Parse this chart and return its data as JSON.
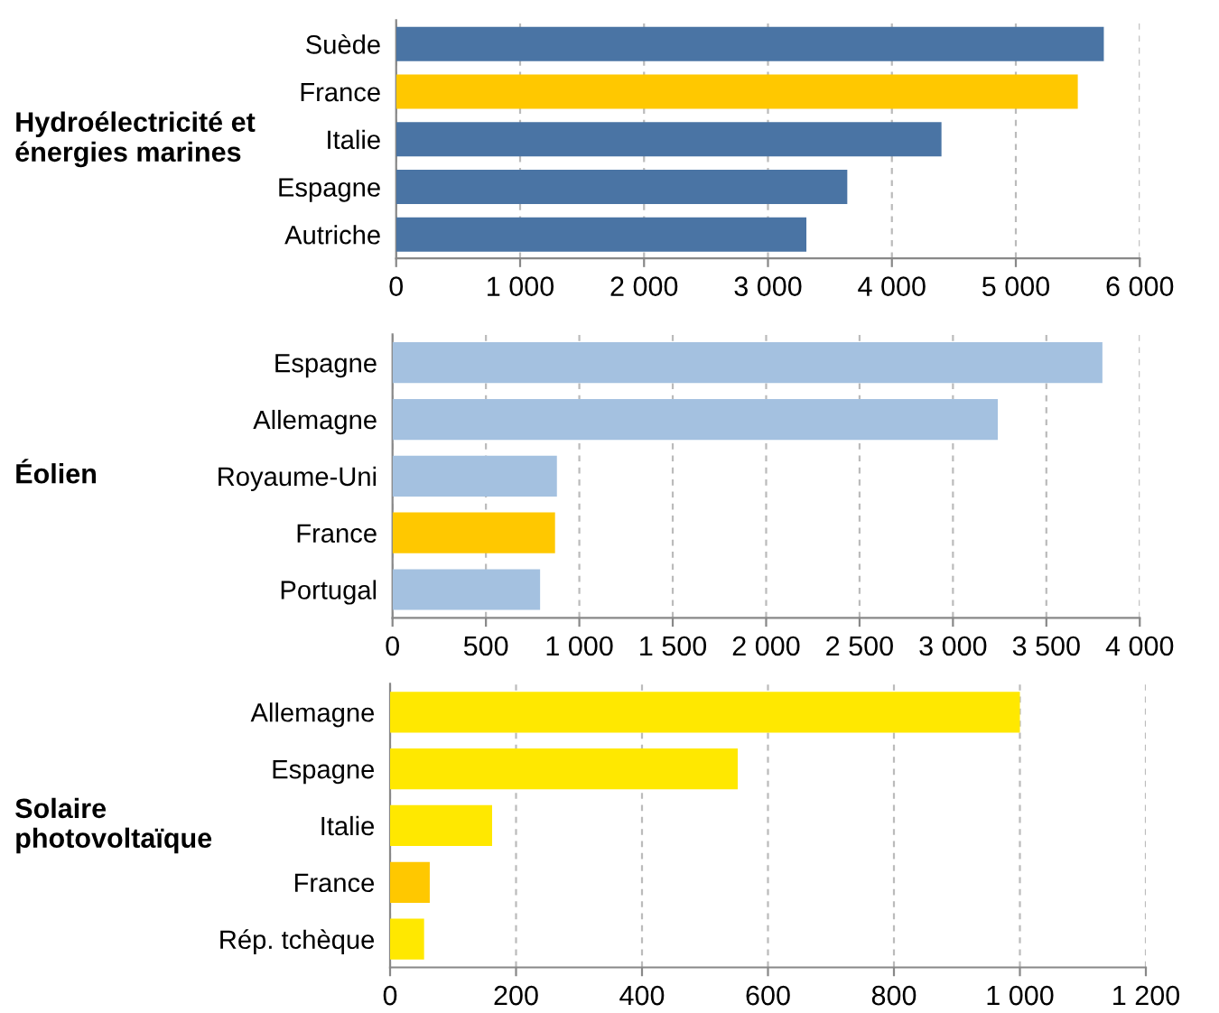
{
  "chart_data": [
    {
      "type": "bar",
      "orientation": "horizontal",
      "ylabel": "Hydroélectricité et\nénergies marines",
      "categories": [
        "Suède",
        "France",
        "Italie",
        "Espagne",
        "Autriche"
      ],
      "values": [
        5710,
        5500,
        4400,
        3640,
        3310
      ],
      "colors": [
        "#4a74a4",
        "#ffc800",
        "#4a74a4",
        "#4a74a4",
        "#4a74a4"
      ],
      "xlim": [
        0,
        6000
      ],
      "xticks": [
        0,
        {
          "value": 1000,
          "label": "1 000"
        },
        {
          "value": 2000,
          "label": "2 000"
        },
        {
          "value": 3000,
          "label": "3 000"
        },
        {
          "value": 4000,
          "label": "4 000"
        },
        {
          "value": 5000,
          "label": "5 000"
        },
        {
          "value": 6000,
          "label": "6 000"
        }
      ],
      "grid": "x"
    },
    {
      "type": "bar",
      "orientation": "horizontal",
      "ylabel": "Éolien",
      "categories": [
        "Espagne",
        "Allemagne",
        "Royaume-Uni",
        "France",
        "Portugal"
      ],
      "values": [
        3800,
        3240,
        880,
        870,
        790
      ],
      "colors": [
        "#a4c1e0",
        "#a4c1e0",
        "#a4c1e0",
        "#ffc800",
        "#a4c1e0"
      ],
      "xlim": [
        0,
        4000
      ],
      "xticks": [
        0,
        500,
        {
          "value": 1000,
          "label": "1 000"
        },
        {
          "value": 1500,
          "label": "1 500"
        },
        {
          "value": 2000,
          "label": "2 000"
        },
        {
          "value": 2500,
          "label": "2 500"
        },
        {
          "value": 3000,
          "label": "3 000"
        },
        {
          "value": 3500,
          "label": "3 500"
        },
        {
          "value": 4000,
          "label": "4 000"
        }
      ],
      "grid": "x"
    },
    {
      "type": "bar",
      "orientation": "horizontal",
      "ylabel": "Solaire\nphotovoltaïque",
      "categories": [
        "Allemagne",
        "Espagne",
        "Italie",
        "France",
        "Rép. tchèque"
      ],
      "values": [
        1000,
        552,
        162,
        63,
        54
      ],
      "colors": [
        "#ffe800",
        "#ffe800",
        "#ffe800",
        "#ffc800",
        "#ffe800"
      ],
      "xlim": [
        0,
        1200
      ],
      "xticks": [
        0,
        200,
        400,
        600,
        800,
        {
          "value": 1000,
          "label": "1 000"
        },
        {
          "value": 1200,
          "label": "1 200"
        }
      ],
      "grid": "x"
    }
  ]
}
